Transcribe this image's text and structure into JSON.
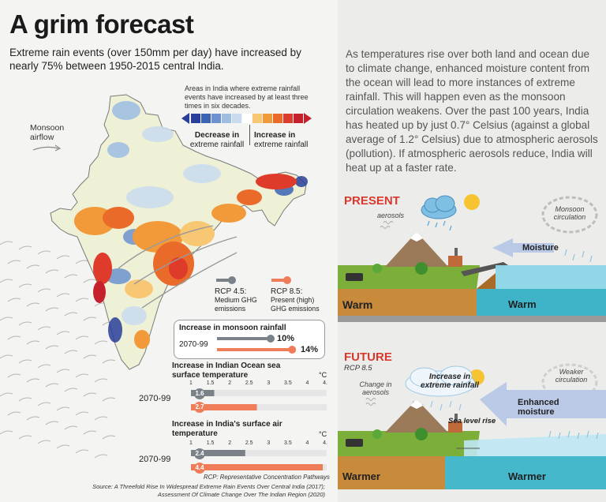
{
  "title": "A grim forecast",
  "subtitle": "Extreme rain events (over 150mm per day) have increased by nearly 75% between 1950-2015 central India.",
  "map": {
    "legend_title": "Areas in India where extreme rainfall events have increased by at least three times in six decades.",
    "decrease_label": "Decrease in",
    "decrease_sub": "extreme rainfall",
    "increase_label": "Increase in",
    "increase_sub": "extreme rainfall",
    "monsoon_airflow": "Monsoon airflow",
    "legend_colors_decrease": [
      "#2a3f9a",
      "#3c63b4",
      "#6d92cf",
      "#9dbde3",
      "#c9dcef"
    ],
    "legend_colors_increase": [
      "#f7c774",
      "#f29a3a",
      "#ea6a2a",
      "#df3b2b",
      "#c7202d"
    ]
  },
  "scenarios": {
    "rcp45_title": "RCP 4.5:",
    "rcp45_desc": "Medium GHG emissions",
    "rcp85_title": "RCP 8.5:",
    "rcp85_desc": "Present (high) GHG emissions",
    "rcp45_color": "#7b8188",
    "rcp85_color": "#ef7d5a"
  },
  "stats": {
    "period": "2070-99",
    "monsoon": {
      "title": "Increase in monsoon rainfall",
      "rcp45": "10%",
      "rcp85": "14%",
      "rcp45_value": 10,
      "rcp85_value": 14
    },
    "ocean": {
      "title": "Increase in Indian Ocean sea surface temperature",
      "unit": "°C",
      "ticks": [
        "1",
        "1.5",
        "2",
        "2.5",
        "3",
        "3.5",
        "4",
        "4.5"
      ],
      "rcp45": "1.6",
      "rcp85": "2.7",
      "rcp45_value": 1.6,
      "rcp85_value": 2.7
    },
    "air": {
      "title": "Increase in India's surface air temperature",
      "unit": "°C",
      "ticks": [
        "1",
        "1.5",
        "2",
        "2.5",
        "3",
        "3.5",
        "4",
        "4.5"
      ],
      "rcp45": "2.4",
      "rcp85": "4.4",
      "rcp45_value": 2.4,
      "rcp85_value": 4.4
    }
  },
  "rcp_note": "RCP: Representative Concentration Pathways",
  "source_line1": "Source: A Threefold Rise In Widespread Extreme Rain Events Over Central India (2017);",
  "source_line2": "Assessment Of Climate Change Over The Indian Region (2020)",
  "intro": "As temperatures rise over both land and ocean due to climate change, enhanced moisture content from the ocean will lead to more instances of extreme rainfall. This will happen even as the monsoon circulation weakens. Over the past 100 years, India has heated up by just 0.7° Celsius (against a global average of 1.2° Celsius) due to atmospheric aerosols (pollution). If atmospheric aerosols reduce, India will heat up at a faster rate.",
  "present": {
    "heading": "PRESENT",
    "aerosols": "aerosols",
    "monsoon_circulation": "Monsoon circulation",
    "moisture": "Moisture",
    "land": "Warm",
    "ocean": "Warm"
  },
  "future": {
    "heading": "FUTURE",
    "scenario": "RCP 8.5",
    "change_aerosols": "Change in aerosols",
    "increase_rain": "Increase in extreme rainfall",
    "weaker_circulation": "Weaker circulation",
    "enhanced_moisture": "Enhanced moisture",
    "sea_level": "Sea level rise",
    "land": "Warmer",
    "ocean": "Warmer"
  }
}
